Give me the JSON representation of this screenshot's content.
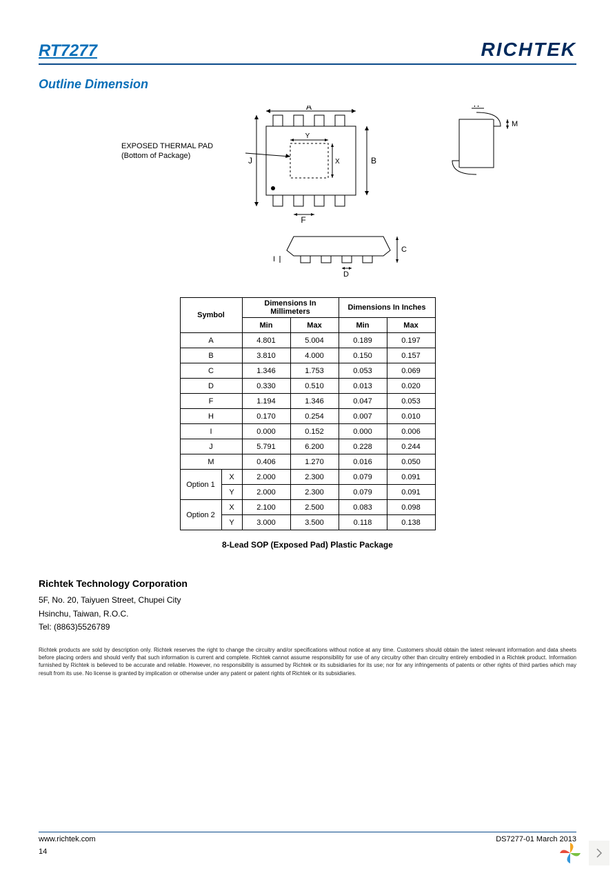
{
  "header": {
    "part_number": "RT7277",
    "brand": "RICHTEK"
  },
  "section_title": "Outline Dimension",
  "diagram": {
    "thermal_label_line1": "EXPOSED THERMAL PAD",
    "thermal_label_line2": "(Bottom of Package)",
    "labels": {
      "A": "A",
      "B": "B",
      "C": "C",
      "D": "D",
      "F": "F",
      "H": "H",
      "I": "I",
      "J": "J",
      "M": "M",
      "X": "X",
      "Y": "Y"
    }
  },
  "table": {
    "header_symbol": "Symbol",
    "header_mm": "Dimensions In Millimeters",
    "header_in": "Dimensions In Inches",
    "col_min": "Min",
    "col_max": "Max",
    "rows": [
      {
        "sym": "A",
        "sub": "",
        "mm_min": "4.801",
        "mm_max": "5.004",
        "in_min": "0.189",
        "in_max": "0.197"
      },
      {
        "sym": "B",
        "sub": "",
        "mm_min": "3.810",
        "mm_max": "4.000",
        "in_min": "0.150",
        "in_max": "0.157"
      },
      {
        "sym": "C",
        "sub": "",
        "mm_min": "1.346",
        "mm_max": "1.753",
        "in_min": "0.053",
        "in_max": "0.069"
      },
      {
        "sym": "D",
        "sub": "",
        "mm_min": "0.330",
        "mm_max": "0.510",
        "in_min": "0.013",
        "in_max": "0.020"
      },
      {
        "sym": "F",
        "sub": "",
        "mm_min": "1.194",
        "mm_max": "1.346",
        "in_min": "0.047",
        "in_max": "0.053"
      },
      {
        "sym": "H",
        "sub": "",
        "mm_min": "0.170",
        "mm_max": "0.254",
        "in_min": "0.007",
        "in_max": "0.010"
      },
      {
        "sym": "I",
        "sub": "",
        "mm_min": "0.000",
        "mm_max": "0.152",
        "in_min": "0.000",
        "in_max": "0.006"
      },
      {
        "sym": "J",
        "sub": "",
        "mm_min": "5.791",
        "mm_max": "6.200",
        "in_min": "0.228",
        "in_max": "0.244"
      },
      {
        "sym": "M",
        "sub": "",
        "mm_min": "0.406",
        "mm_max": "1.270",
        "in_min": "0.016",
        "in_max": "0.050"
      }
    ],
    "options": [
      {
        "name": "Option 1",
        "sub_rows": [
          {
            "sub": "X",
            "mm_min": "2.000",
            "mm_max": "2.300",
            "in_min": "0.079",
            "in_max": "0.091"
          },
          {
            "sub": "Y",
            "mm_min": "2.000",
            "mm_max": "2.300",
            "in_min": "0.079",
            "in_max": "0.091"
          }
        ]
      },
      {
        "name": "Option 2",
        "sub_rows": [
          {
            "sub": "X",
            "mm_min": "2.100",
            "mm_max": "2.500",
            "in_min": "0.083",
            "in_max": "0.098"
          },
          {
            "sub": "Y",
            "mm_min": "3.000",
            "mm_max": "3.500",
            "in_min": "0.118",
            "in_max": "0.138"
          }
        ]
      }
    ]
  },
  "caption": "8-Lead SOP (Exposed Pad) Plastic Package",
  "corp": {
    "title": "Richtek Technology Corporation",
    "addr1": "5F, No. 20, Taiyuen Street, Chupei City",
    "addr2": "Hsinchu, Taiwan, R.O.C.",
    "tel": "Tel: (8863)5526789"
  },
  "disclaimer": "Richtek products are sold by description only. Richtek reserves the right to change the circuitry and/or specifications without notice at any time. Customers should obtain the latest relevant information and data sheets before placing orders and should verify that such information is current and complete. Richtek cannot assume responsibility for use of any circuitry other than circuitry entirely embodied in a Richtek product. Information furnished by Richtek is believed to be accurate and reliable. However, no responsibility is assumed by Richtek or its subsidiaries for its use; nor for any infringements of patents or other rights of third parties which may result from its use. No license is granted by implication or otherwise under any patent or patent rights of Richtek or its subsidiaries.",
  "footer": {
    "url": "www.richtek.com",
    "docid": "DS7277-01   March  2013",
    "page": "14"
  },
  "colors": {
    "richtek_blue": "#002a5c",
    "link_blue": "#0a6fb8",
    "rule_blue": "#0a4a8a"
  }
}
